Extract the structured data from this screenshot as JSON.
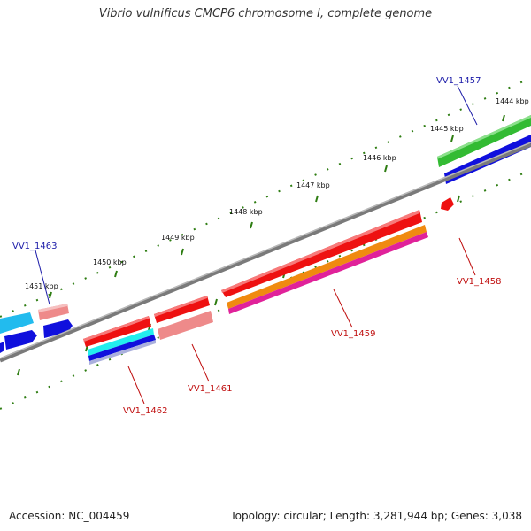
{
  "title": "Vibrio vulnificus CMCP6 chromosome I, complete genome",
  "ticks": [
    "1444 kbp",
    "1445 kbp",
    "1446 kbp",
    "1447 kbp",
    "1448 kbp",
    "1449 kbp",
    "1450 kbp",
    "1451 kbp"
  ],
  "gene_labels": {
    "vv1_1457": "VV1_1457",
    "vv1_1463": "VV1_1463",
    "vv1_1458": "VV1_1458",
    "vv1_1459": "VV1_1459",
    "vv1_1461": "VV1_1461",
    "vv1_1462": "VV1_1462"
  },
  "footer": {
    "accession": "Accession: NC_004459",
    "summary": "Topology: circular; Length: 3,281,944 bp; Genes: 3,038"
  },
  "colors": {
    "backbone": "#7a7a7a",
    "ticks": "#2e7d12",
    "forward_label": "#1a1aa8",
    "reverse_label": "#c01010",
    "cds_red": "#ee1111",
    "cds_pink": "#ee8a8a",
    "cds_green": "#33bb33",
    "cds_blue": "#1010dd",
    "cds_cyan": "#22bbee",
    "cds_orange": "#f08a10",
    "cds_magenta": "#e0229a"
  }
}
